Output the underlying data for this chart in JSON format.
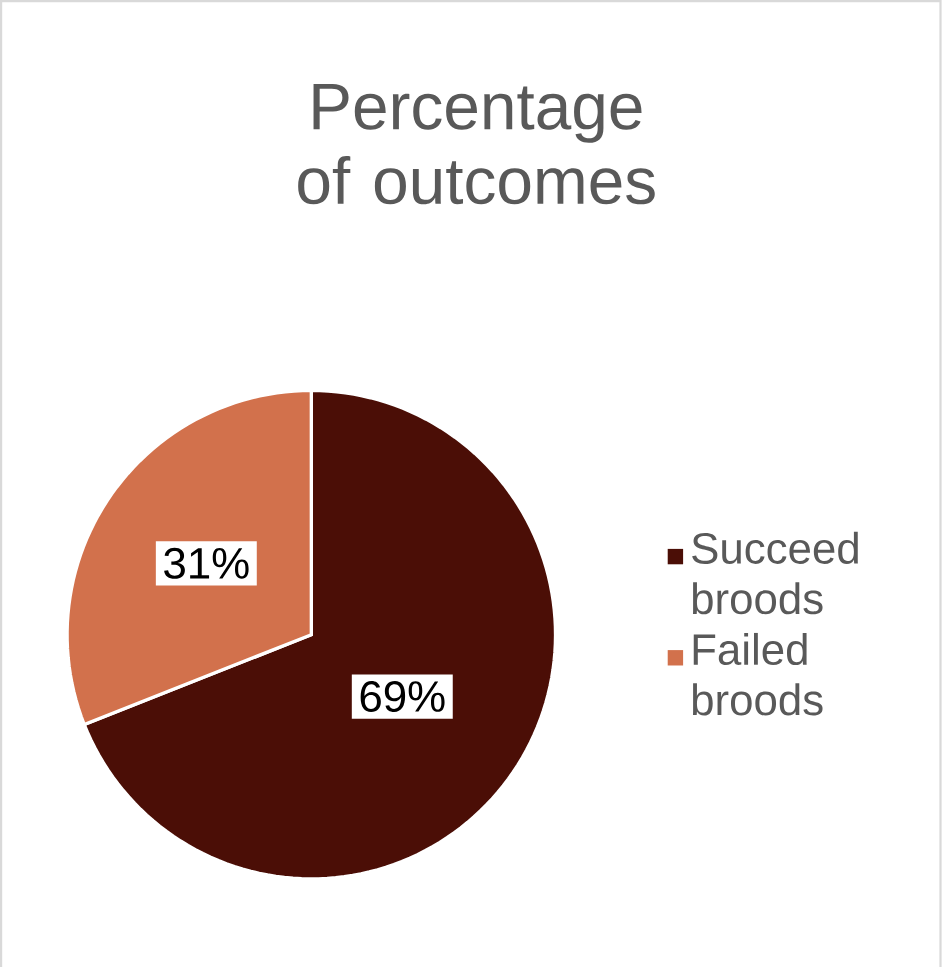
{
  "chart_data": {
    "type": "pie",
    "title": "Percentage of outcomes",
    "categories": [
      "Succeed broods",
      "Failed broods"
    ],
    "values": [
      69,
      31
    ],
    "colors": [
      "#4b0e06",
      "#d2714c"
    ],
    "value_labels": [
      "69%",
      "31%"
    ],
    "legend": "right"
  }
}
